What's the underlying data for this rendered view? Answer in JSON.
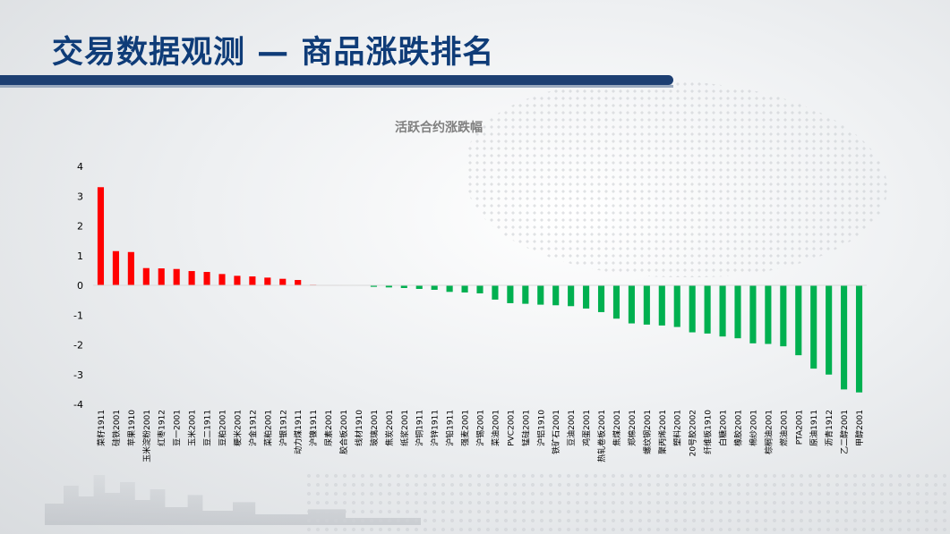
{
  "page": {
    "title": "交易数据观测 — 商品涨跌排名"
  },
  "chart_data": {
    "type": "bar",
    "title": "活跃合约涨跌幅",
    "xlabel": "",
    "ylabel": "",
    "ylim": [
      -4,
      4
    ],
    "yticks": [
      4,
      3,
      2,
      1,
      0,
      -1,
      -2,
      -3,
      -4
    ],
    "grid": false,
    "legend": "none",
    "colors": {
      "positive": "#ff0000",
      "negative": "#00b050",
      "title": "#7f7f7f",
      "axis_text": "#000000"
    },
    "categories": [
      "菜籽1911",
      "硅铁2001",
      "苹果1910",
      "玉米淀粉2001",
      "红枣1912",
      "豆一2001",
      "玉米2001",
      "豆二1911",
      "豆粕2001",
      "粳米2001",
      "沪金1912",
      "菜粕2001",
      "沪银1912",
      "动力煤1911",
      "沪镍1911",
      "尿素2001",
      "胶合板2001",
      "线材1910",
      "玻璃2001",
      "焦炭2001",
      "纸浆2001",
      "沪铜1911",
      "沪锌1911",
      "沪铅1911",
      "强麦2001",
      "沪锡2001",
      "菜油2001",
      "PVC2001",
      "锰硅2001",
      "沪铝1910",
      "铁矿石2001",
      "豆油2001",
      "鸡蛋2001",
      "热轧卷板2001",
      "焦煤2001",
      "郑棉2001",
      "螺纹钢2001",
      "聚丙烯2001",
      "塑料2001",
      "20号胶2002",
      "纤维板1910",
      "白糖2001",
      "橡胶2001",
      "棉纱2001",
      "棕榈油2001",
      "燃油2001",
      "PTA2001",
      "原油1911",
      "沥青1912",
      "乙二醇2001",
      "甲醇2001"
    ],
    "values": [
      3.3,
      1.15,
      1.12,
      0.58,
      0.57,
      0.55,
      0.48,
      0.45,
      0.38,
      0.32,
      0.3,
      0.26,
      0.22,
      0.18,
      0.02,
      0,
      0,
      0,
      -0.05,
      -0.07,
      -0.09,
      -0.12,
      -0.15,
      -0.22,
      -0.24,
      -0.27,
      -0.48,
      -0.6,
      -0.62,
      -0.65,
      -0.67,
      -0.7,
      -0.78,
      -0.9,
      -1.12,
      -1.28,
      -1.32,
      -1.35,
      -1.4,
      -1.58,
      -1.62,
      -1.72,
      -1.78,
      -1.95,
      -1.97,
      -2.05,
      -2.35,
      -2.8,
      -3.0,
      -3.5,
      -3.6
    ]
  }
}
